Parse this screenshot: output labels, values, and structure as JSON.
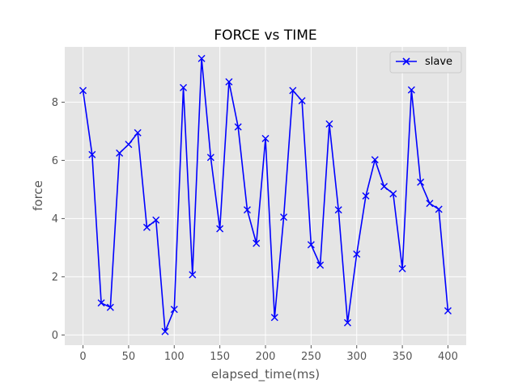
{
  "chart_data": {
    "type": "line",
    "title": "FORCE vs TIME",
    "xlabel": "elapsed_time(ms)",
    "ylabel": "force",
    "xlim": [
      -20,
      420
    ],
    "ylim": [
      -0.35,
      9.9
    ],
    "xticks": [
      0,
      50,
      100,
      150,
      200,
      250,
      300,
      350,
      400
    ],
    "yticks": [
      0,
      2,
      4,
      6,
      8
    ],
    "grid": true,
    "legend_position": "top-right",
    "colors": {
      "background": "#e5e5e5",
      "grid": "#ffffff",
      "series": "#0000ff"
    },
    "series": [
      {
        "name": "slave",
        "marker": "x",
        "x": [
          0,
          10,
          20,
          30,
          40,
          50,
          60,
          70,
          80,
          90,
          100,
          110,
          120,
          130,
          140,
          150,
          160,
          170,
          180,
          190,
          200,
          210,
          220,
          230,
          240,
          250,
          260,
          270,
          280,
          290,
          300,
          310,
          320,
          330,
          340,
          350,
          360,
          370,
          380,
          390,
          400
        ],
        "values": [
          8.4,
          6.2,
          1.1,
          0.95,
          6.25,
          6.55,
          6.95,
          3.7,
          3.95,
          0.12,
          0.88,
          8.5,
          2.07,
          9.5,
          6.1,
          3.65,
          8.7,
          7.15,
          4.3,
          3.15,
          6.75,
          0.6,
          4.05,
          8.4,
          8.05,
          3.1,
          2.4,
          7.25,
          4.3,
          0.42,
          2.78,
          4.78,
          6.02,
          5.1,
          4.85,
          2.28,
          8.42,
          5.25,
          4.52,
          4.32,
          0.83
        ]
      }
    ]
  }
}
